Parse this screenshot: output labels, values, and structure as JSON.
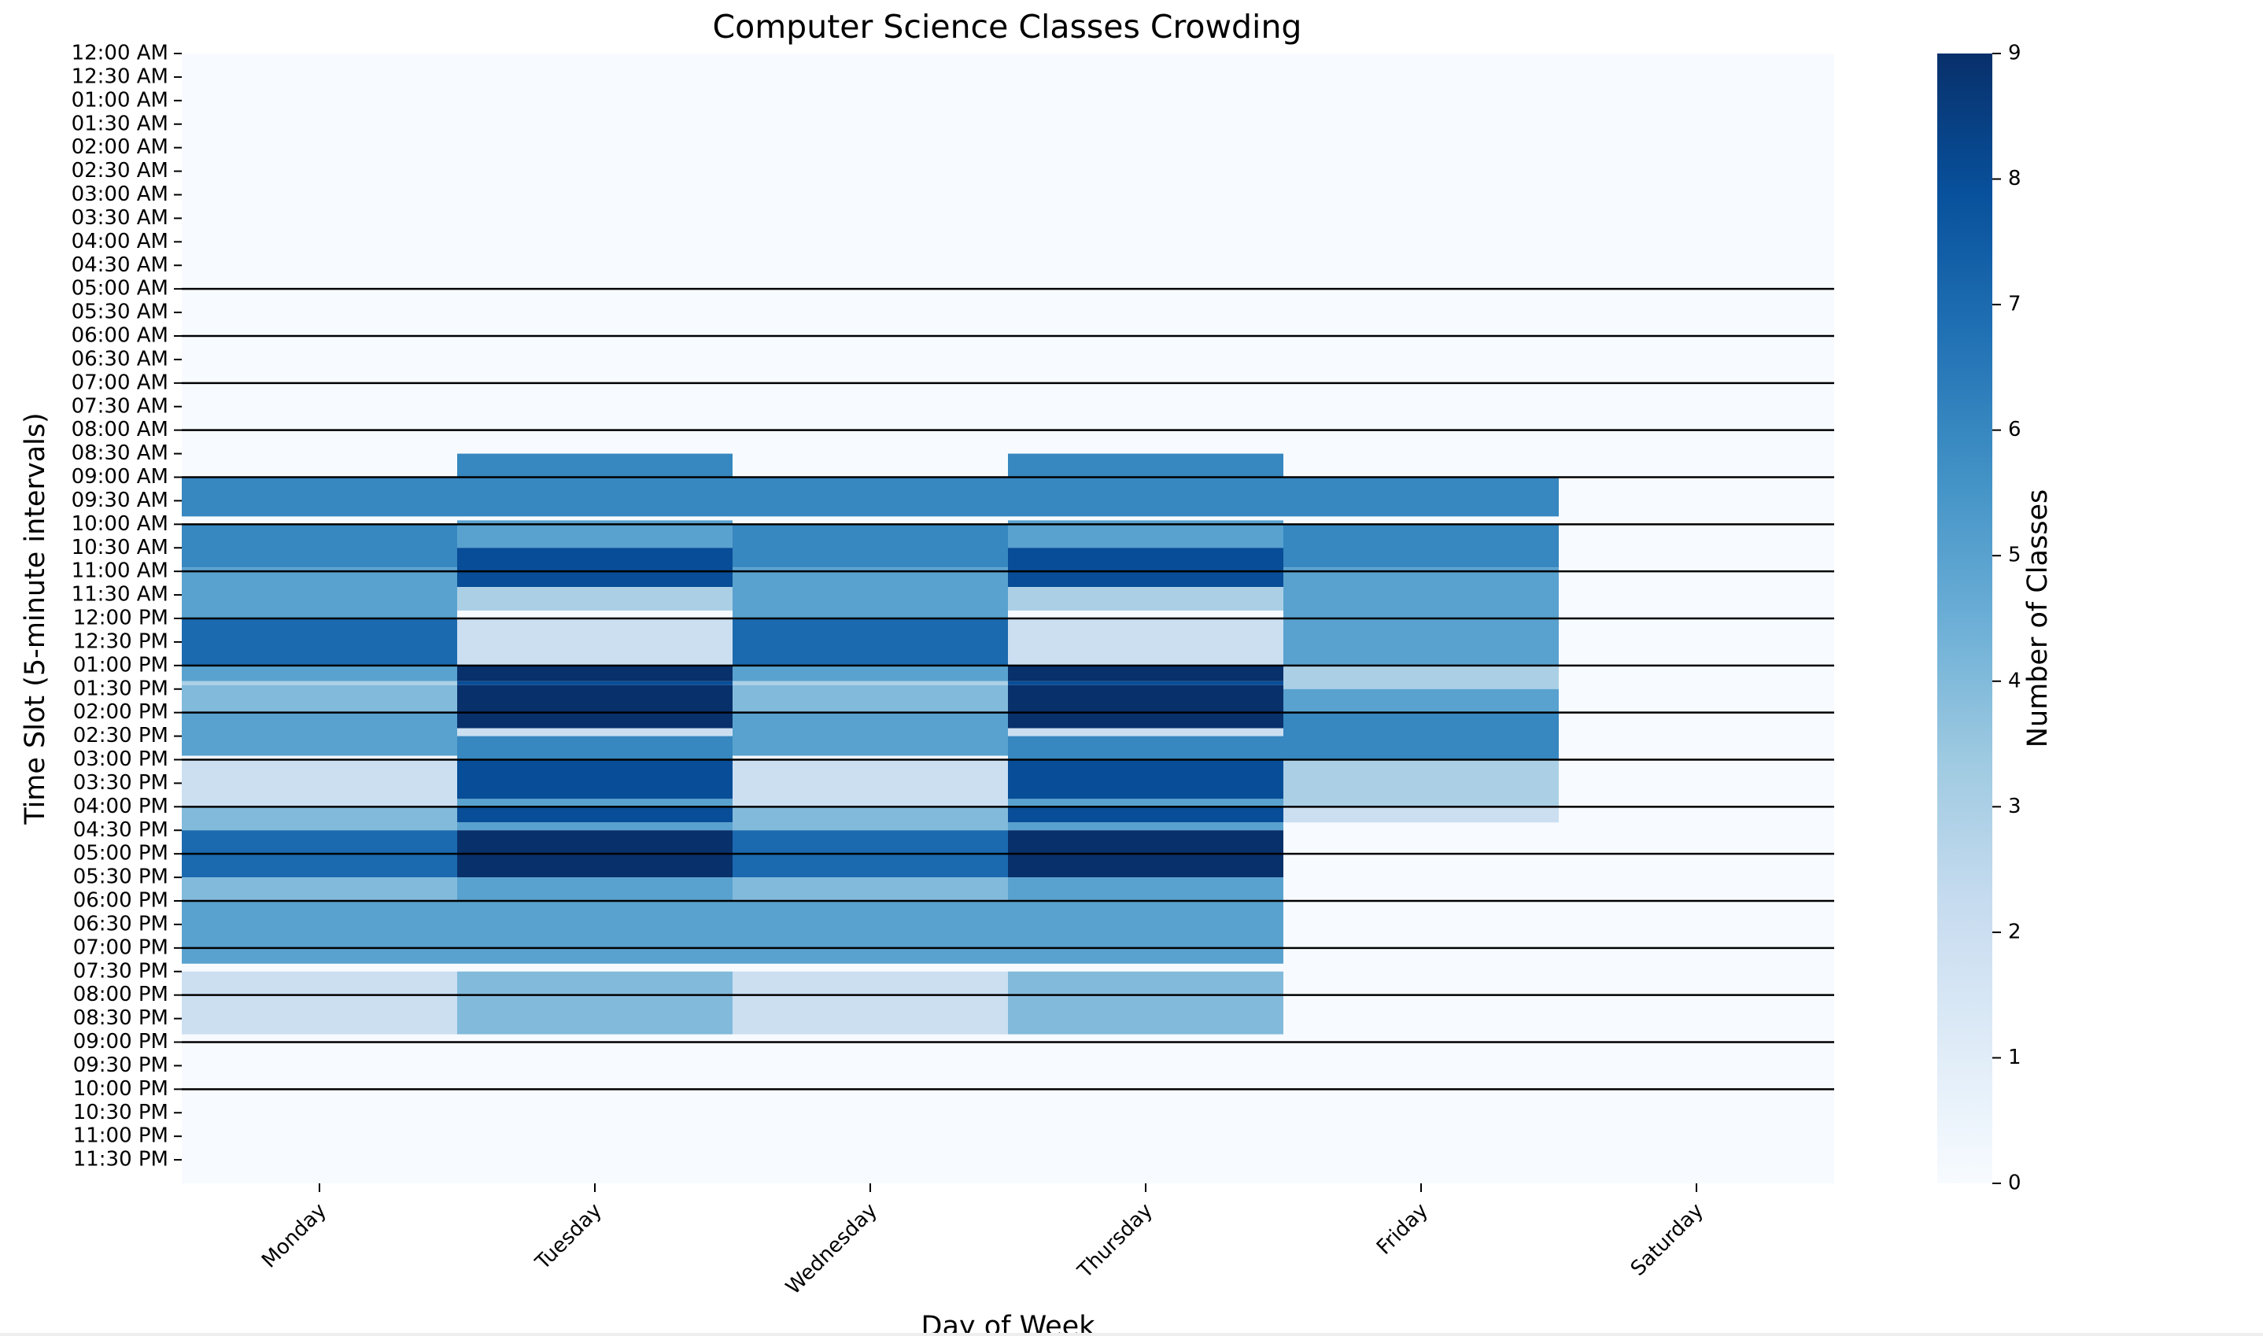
{
  "chart_data": {
    "type": "heatmap",
    "title": "Computer Science Classes Crowding",
    "xlabel": "Day of Week",
    "ylabel": "Time Slot (5-minute intervals)",
    "colorbar_label": "Number of Classes",
    "colormap": "Blues",
    "vmin": 0,
    "vmax": 9,
    "colorbar_ticks": [
      "0",
      "1",
      "2",
      "3",
      "4",
      "5",
      "6",
      "7",
      "8",
      "9"
    ],
    "days": [
      "Monday",
      "Tuesday",
      "Wednesday",
      "Thursday",
      "Friday",
      "Saturday"
    ],
    "y_tick_labels": [
      "12:00 AM",
      "12:30 AM",
      "01:00 AM",
      "01:30 AM",
      "02:00 AM",
      "02:30 AM",
      "03:00 AM",
      "03:30 AM",
      "04:00 AM",
      "04:30 AM",
      "05:00 AM",
      "05:30 AM",
      "06:00 AM",
      "06:30 AM",
      "07:00 AM",
      "07:30 AM",
      "08:00 AM",
      "08:30 AM",
      "09:00 AM",
      "09:30 AM",
      "10:00 AM",
      "10:30 AM",
      "11:00 AM",
      "11:30 AM",
      "12:00 PM",
      "12:30 PM",
      "01:00 PM",
      "01:30 PM",
      "02:00 PM",
      "02:30 PM",
      "03:00 PM",
      "03:30 PM",
      "04:00 PM",
      "04:30 PM",
      "05:00 PM",
      "05:30 PM",
      "06:00 PM",
      "06:30 PM",
      "07:00 PM",
      "07:30 PM",
      "08:00 PM",
      "08:30 PM",
      "09:00 PM",
      "09:30 PM",
      "10:00 PM",
      "10:30 PM",
      "11:00 PM",
      "11:30 PM"
    ],
    "hour_lines": [
      "05:00 AM",
      "06:00 AM",
      "07:00 AM",
      "08:00 AM",
      "09:00 AM",
      "10:00 AM",
      "11:00 AM",
      "12:00 PM",
      "01:00 PM",
      "02:00 PM",
      "03:00 PM",
      "04:00 PM",
      "05:00 PM",
      "06:00 PM",
      "07:00 PM",
      "08:00 PM",
      "09:00 PM",
      "10:00 PM"
    ],
    "blocks": [
      {
        "day": "Monday",
        "start": "09:00 AM",
        "end": "09:50 AM",
        "value": 6
      },
      {
        "day": "Monday",
        "start": "10:00 AM",
        "end": "10:55 AM",
        "value": 6
      },
      {
        "day": "Monday",
        "start": "10:55 AM",
        "end": "12:00 PM",
        "value": 5
      },
      {
        "day": "Monday",
        "start": "12:00 PM",
        "end": "01:00 PM",
        "value": 7
      },
      {
        "day": "Monday",
        "start": "01:00 PM",
        "end": "01:20 PM",
        "value": 5
      },
      {
        "day": "Monday",
        "start": "01:20 PM",
        "end": "01:25 PM",
        "value": 3
      },
      {
        "day": "Monday",
        "start": "01:25 PM",
        "end": "02:00 PM",
        "value": 4
      },
      {
        "day": "Monday",
        "start": "02:00 PM",
        "end": "02:55 PM",
        "value": 5
      },
      {
        "day": "Monday",
        "start": "03:00 PM",
        "end": "04:00 PM",
        "value": 2
      },
      {
        "day": "Monday",
        "start": "04:00 PM",
        "end": "04:30 PM",
        "value": 4
      },
      {
        "day": "Monday",
        "start": "04:30 PM",
        "end": "05:30 PM",
        "value": 7
      },
      {
        "day": "Monday",
        "start": "05:30 PM",
        "end": "06:00 PM",
        "value": 4
      },
      {
        "day": "Monday",
        "start": "06:00 PM",
        "end": "07:20 PM",
        "value": 5
      },
      {
        "day": "Monday",
        "start": "07:30 PM",
        "end": "08:50 PM",
        "value": 2
      },
      {
        "day": "Tuesday",
        "start": "08:30 AM",
        "end": "09:50 AM",
        "value": 6
      },
      {
        "day": "Tuesday",
        "start": "09:55 AM",
        "end": "10:30 AM",
        "value": 5
      },
      {
        "day": "Tuesday",
        "start": "10:30 AM",
        "end": "11:20 AM",
        "value": 8
      },
      {
        "day": "Tuesday",
        "start": "11:20 AM",
        "end": "11:50 AM",
        "value": 3
      },
      {
        "day": "Tuesday",
        "start": "12:00 PM",
        "end": "01:00 PM",
        "value": 2
      },
      {
        "day": "Tuesday",
        "start": "01:00 PM",
        "end": "01:20 PM",
        "value": 9
      },
      {
        "day": "Tuesday",
        "start": "01:20 PM",
        "end": "01:25 PM",
        "value": 8
      },
      {
        "day": "Tuesday",
        "start": "01:25 PM",
        "end": "02:20 PM",
        "value": 9
      },
      {
        "day": "Tuesday",
        "start": "02:20 PM",
        "end": "02:30 PM",
        "value": 2
      },
      {
        "day": "Tuesday",
        "start": "02:30 PM",
        "end": "03:00 PM",
        "value": 6
      },
      {
        "day": "Tuesday",
        "start": "03:00 PM",
        "end": "03:50 PM",
        "value": 8
      },
      {
        "day": "Tuesday",
        "start": "03:50 PM",
        "end": "04:00 PM",
        "value": 5
      },
      {
        "day": "Tuesday",
        "start": "04:00 PM",
        "end": "04:20 PM",
        "value": 8
      },
      {
        "day": "Tuesday",
        "start": "04:20 PM",
        "end": "04:30 PM",
        "value": 5
      },
      {
        "day": "Tuesday",
        "start": "04:30 PM",
        "end": "05:30 PM",
        "value": 9
      },
      {
        "day": "Tuesday",
        "start": "05:30 PM",
        "end": "06:00 PM",
        "value": 5
      },
      {
        "day": "Tuesday",
        "start": "06:00 PM",
        "end": "07:20 PM",
        "value": 5
      },
      {
        "day": "Tuesday",
        "start": "07:30 PM",
        "end": "08:50 PM",
        "value": 4
      },
      {
        "day": "Wednesday",
        "start": "09:00 AM",
        "end": "09:50 AM",
        "value": 6
      },
      {
        "day": "Wednesday",
        "start": "10:00 AM",
        "end": "10:55 AM",
        "value": 6
      },
      {
        "day": "Wednesday",
        "start": "10:55 AM",
        "end": "12:00 PM",
        "value": 5
      },
      {
        "day": "Wednesday",
        "start": "12:00 PM",
        "end": "01:00 PM",
        "value": 7
      },
      {
        "day": "Wednesday",
        "start": "01:00 PM",
        "end": "01:20 PM",
        "value": 5
      },
      {
        "day": "Wednesday",
        "start": "01:20 PM",
        "end": "01:25 PM",
        "value": 3
      },
      {
        "day": "Wednesday",
        "start": "01:25 PM",
        "end": "02:00 PM",
        "value": 4
      },
      {
        "day": "Wednesday",
        "start": "02:00 PM",
        "end": "02:55 PM",
        "value": 5
      },
      {
        "day": "Wednesday",
        "start": "03:00 PM",
        "end": "04:00 PM",
        "value": 2
      },
      {
        "day": "Wednesday",
        "start": "04:00 PM",
        "end": "04:30 PM",
        "value": 4
      },
      {
        "day": "Wednesday",
        "start": "04:30 PM",
        "end": "05:30 PM",
        "value": 7
      },
      {
        "day": "Wednesday",
        "start": "05:30 PM",
        "end": "06:00 PM",
        "value": 4
      },
      {
        "day": "Wednesday",
        "start": "06:00 PM",
        "end": "07:20 PM",
        "value": 5
      },
      {
        "day": "Wednesday",
        "start": "07:30 PM",
        "end": "08:50 PM",
        "value": 2
      },
      {
        "day": "Thursday",
        "start": "08:30 AM",
        "end": "09:50 AM",
        "value": 6
      },
      {
        "day": "Thursday",
        "start": "09:55 AM",
        "end": "10:30 AM",
        "value": 5
      },
      {
        "day": "Thursday",
        "start": "10:30 AM",
        "end": "11:20 AM",
        "value": 8
      },
      {
        "day": "Thursday",
        "start": "11:20 AM",
        "end": "11:50 AM",
        "value": 3
      },
      {
        "day": "Thursday",
        "start": "12:00 PM",
        "end": "01:00 PM",
        "value": 2
      },
      {
        "day": "Thursday",
        "start": "01:00 PM",
        "end": "01:20 PM",
        "value": 9
      },
      {
        "day": "Thursday",
        "start": "01:20 PM",
        "end": "01:25 PM",
        "value": 8
      },
      {
        "day": "Thursday",
        "start": "01:25 PM",
        "end": "02:20 PM",
        "value": 9
      },
      {
        "day": "Thursday",
        "start": "02:20 PM",
        "end": "02:30 PM",
        "value": 2
      },
      {
        "day": "Thursday",
        "start": "02:30 PM",
        "end": "03:00 PM",
        "value": 6
      },
      {
        "day": "Thursday",
        "start": "03:00 PM",
        "end": "03:50 PM",
        "value": 8
      },
      {
        "day": "Thursday",
        "start": "03:50 PM",
        "end": "04:00 PM",
        "value": 5
      },
      {
        "day": "Thursday",
        "start": "04:00 PM",
        "end": "04:20 PM",
        "value": 8
      },
      {
        "day": "Thursday",
        "start": "04:20 PM",
        "end": "04:30 PM",
        "value": 5
      },
      {
        "day": "Thursday",
        "start": "04:30 PM",
        "end": "05:30 PM",
        "value": 9
      },
      {
        "day": "Thursday",
        "start": "05:30 PM",
        "end": "06:00 PM",
        "value": 5
      },
      {
        "day": "Thursday",
        "start": "06:00 PM",
        "end": "07:20 PM",
        "value": 5
      },
      {
        "day": "Thursday",
        "start": "07:30 PM",
        "end": "08:50 PM",
        "value": 4
      },
      {
        "day": "Friday",
        "start": "09:00 AM",
        "end": "09:50 AM",
        "value": 6
      },
      {
        "day": "Friday",
        "start": "10:00 AM",
        "end": "10:55 AM",
        "value": 6
      },
      {
        "day": "Friday",
        "start": "10:55 AM",
        "end": "12:00 PM",
        "value": 5
      },
      {
        "day": "Friday",
        "start": "12:00 PM",
        "end": "01:00 PM",
        "value": 5
      },
      {
        "day": "Friday",
        "start": "01:00 PM",
        "end": "01:30 PM",
        "value": 3
      },
      {
        "day": "Friday",
        "start": "01:30 PM",
        "end": "02:00 PM",
        "value": 5
      },
      {
        "day": "Friday",
        "start": "02:00 PM",
        "end": "03:00 PM",
        "value": 6
      },
      {
        "day": "Friday",
        "start": "03:00 PM",
        "end": "04:00 PM",
        "value": 3
      },
      {
        "day": "Friday",
        "start": "04:00 PM",
        "end": "04:20 PM",
        "value": 2
      }
    ]
  }
}
